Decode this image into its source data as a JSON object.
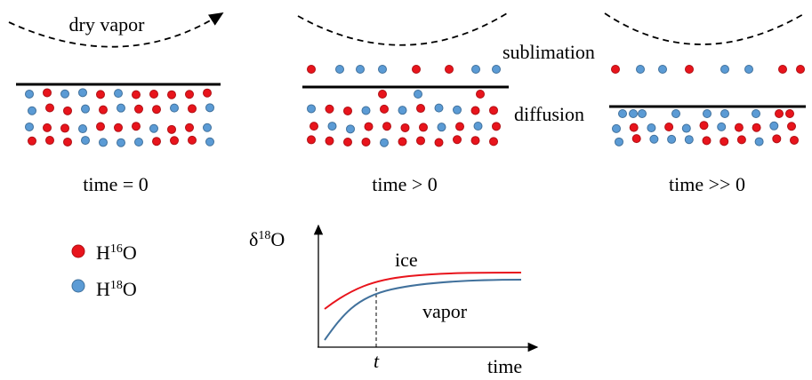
{
  "annotations": [
    "dry vapor",
    "sublimation",
    "diffusion"
  ],
  "panels": [
    {
      "caption": "time = 0"
    },
    {
      "caption": "time > 0"
    },
    {
      "caption": "time >> 0"
    }
  ],
  "legend": [
    {
      "base": "H",
      "sup": "16",
      "tail": "O"
    },
    {
      "base": "H",
      "sup": "18",
      "tail": "O"
    }
  ],
  "graph": {
    "y_label": {
      "base": "δ",
      "sup": "18",
      "tail": "O"
    },
    "curve_labels": [
      "ice",
      "vapor"
    ],
    "marker": "t",
    "x_label": "time"
  }
}
